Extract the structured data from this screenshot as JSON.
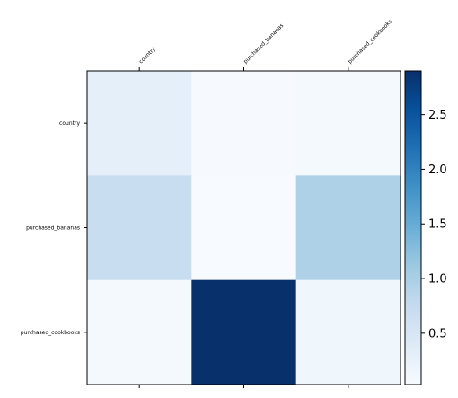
{
  "chart_data": {
    "type": "heatmap",
    "title": "",
    "xlabel": "",
    "ylabel": "",
    "x_categories": [
      "country",
      "purchased_bananas",
      "purchased_cookbooks"
    ],
    "y_categories": [
      "country",
      "purchased_bananas",
      "purchased_cookbooks"
    ],
    "values": [
      [
        0.3,
        0.05,
        0.07
      ],
      [
        0.7,
        0.03,
        0.95
      ],
      [
        0.08,
        2.9,
        0.15
      ]
    ],
    "colormap": "Blues",
    "color_range": [
      0.03,
      2.9
    ],
    "colorbar": {
      "ticks": [
        0.5,
        1.0,
        1.5,
        2.0,
        2.5
      ],
      "tick_labels": [
        "0.5",
        "1.0",
        "1.5",
        "2.0",
        "2.5"
      ]
    }
  }
}
